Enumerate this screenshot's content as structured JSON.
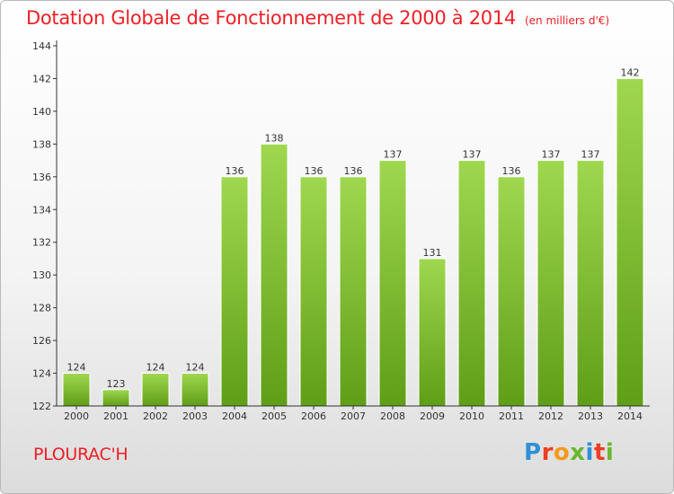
{
  "header": {
    "title": "Dotation Globale de Fonctionnement de 2000 à 2014",
    "unit": "(en milliers d'€)"
  },
  "footer": {
    "commune": "PLOURAC'H",
    "logo_text": "Proxiti",
    "logo_colors": [
      "#2f8fd7",
      "#ee3d23",
      "#f39a1b",
      "#69b82d",
      "#2f8fd7",
      "#ee3d23",
      "#69b82d"
    ]
  },
  "colors": {
    "title": "#ee1f25",
    "bar_light": "#9fd84f",
    "bar_dark": "#5f9e17",
    "axis": "#333333",
    "label": "#333333"
  },
  "chart_data": {
    "type": "bar",
    "title": "Dotation Globale de Fonctionnement de 2000 à 2014",
    "subtitle": "(en milliers d'€)",
    "xlabel": "",
    "ylabel": "",
    "categories": [
      "2000",
      "2001",
      "2002",
      "2003",
      "2004",
      "2005",
      "2006",
      "2007",
      "2008",
      "2009",
      "2010",
      "2011",
      "2012",
      "2013",
      "2014"
    ],
    "values": [
      124,
      123,
      124,
      124,
      136,
      138,
      136,
      136,
      137,
      131,
      137,
      136,
      137,
      137,
      142
    ],
    "ylim": [
      122,
      144
    ],
    "yticks": [
      122,
      124,
      126,
      128,
      130,
      132,
      134,
      136,
      138,
      140,
      142,
      144
    ],
    "grid": false,
    "data_labels": true
  }
}
